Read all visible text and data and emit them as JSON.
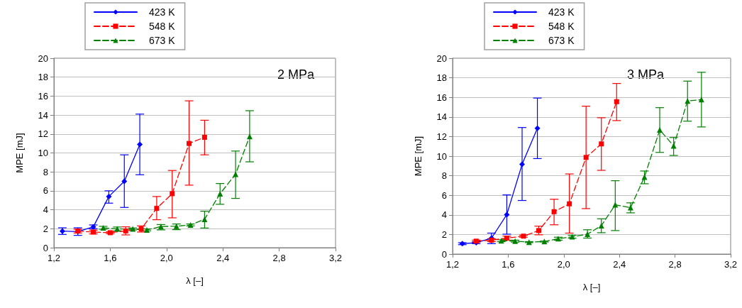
{
  "chart_data": [
    {
      "type": "line",
      "xlabel": "λ [–]",
      "ylabel": "MPE [mJ]",
      "annotations": [
        "2 MPa"
      ],
      "xlim": [
        1.2,
        3.2
      ],
      "xticks": [
        {
          "value": 1.2,
          "label": "1,2"
        },
        {
          "value": 1.6,
          "label": "1,6"
        },
        {
          "value": 2.0,
          "label": "2,0"
        },
        {
          "value": 2.4,
          "label": "2,4"
        },
        {
          "value": 2.8,
          "label": "2,8"
        },
        {
          "value": 3.2,
          "label": "3,2"
        }
      ],
      "ylim": [
        0,
        20
      ],
      "yticks": [
        0,
        2,
        4,
        6,
        8,
        10,
        12,
        14,
        16,
        18,
        20
      ],
      "grid": "y",
      "legend": "top left",
      "series": [
        {
          "name": "423 K",
          "color": "#0000ff",
          "marker": "diamond",
          "line_style": "solid",
          "x": [
            1.26,
            1.37,
            1.48,
            1.59,
            1.7,
            1.81
          ],
          "values": [
            1.75,
            1.7,
            2.2,
            5.4,
            7.0,
            10.9
          ],
          "errors": [
            0.35,
            0.4,
            0.2,
            [
              4.7,
              6.0
            ],
            [
              4.25,
              9.8
            ],
            [
              7.7,
              14.1
            ]
          ]
        },
        {
          "name": "548 K",
          "color": "#ff0000",
          "marker": "square",
          "line_style": "dashed",
          "x": [
            1.37,
            1.48,
            1.6,
            1.71,
            1.82,
            1.93,
            2.04,
            2.16,
            2.27
          ],
          "values": [
            1.75,
            1.65,
            1.58,
            1.77,
            1.98,
            4.15,
            5.7,
            11.0,
            11.65
          ],
          "errors": [
            0.2,
            [
              1.45,
              1.85
            ],
            0.1,
            [
              1.35,
              2.2
            ],
            [
              1.65,
              2.3
            ],
            [
              2.95,
              5.4
            ],
            [
              3.15,
              8.15
            ],
            [
              6.6,
              15.5
            ],
            [
              9.8,
              13.45
            ]
          ]
        },
        {
          "name": "673 K",
          "color": "#008000",
          "marker": "triangle",
          "line_style": "dashed",
          "x": [
            1.55,
            1.65,
            1.76,
            1.86,
            1.96,
            2.07,
            2.17,
            2.27,
            2.38,
            2.49,
            2.59
          ],
          "values": [
            2.1,
            1.98,
            1.98,
            1.88,
            2.23,
            2.27,
            2.4,
            3.0,
            5.7,
            7.75,
            11.75
          ],
          "errors": [
            0.15,
            0.2,
            0.1,
            0.1,
            [
              1.88,
              2.44
            ],
            [
              1.9,
              2.5
            ],
            0.1,
            [
              2.08,
              3.85
            ],
            [
              4.58,
              6.77
            ],
            [
              5.2,
              10.2
            ],
            [
              9.06,
              14.46
            ]
          ]
        }
      ]
    },
    {
      "type": "line",
      "xlabel": "λ [–]",
      "ylabel": "MPE [mJ]",
      "annotations": [
        "3 MPa"
      ],
      "xlim": [
        1.2,
        3.2
      ],
      "xticks": [
        {
          "value": 1.2,
          "label": "1,2"
        },
        {
          "value": 1.6,
          "label": "1,6"
        },
        {
          "value": 2.0,
          "label": "2,0"
        },
        {
          "value": 2.4,
          "label": "2,4"
        },
        {
          "value": 2.8,
          "label": "2,8"
        },
        {
          "value": 3.2,
          "label": "3,2"
        }
      ],
      "ylim": [
        0,
        20
      ],
      "yticks": [
        0,
        2,
        4,
        6,
        8,
        10,
        12,
        14,
        16,
        18,
        20
      ],
      "grid": "y",
      "legend": "top left",
      "series": [
        {
          "name": "423 K",
          "color": "#0000ff",
          "marker": "diamond",
          "line_style": "solid",
          "x": [
            1.27,
            1.37,
            1.48,
            1.59,
            1.7,
            1.81
          ],
          "values": [
            1.06,
            1.16,
            1.63,
            4.03,
            9.16,
            12.84
          ],
          "errors": [
            0.1,
            0.1,
            [
              1.06,
              2.14
            ],
            [
              2.03,
              6.04
            ],
            [
              5.47,
              12.92
            ],
            [
              9.75,
              15.93
            ]
          ]
        },
        {
          "name": "548 K",
          "color": "#ff0000",
          "marker": "square",
          "line_style": "dashed",
          "x": [
            1.37,
            1.48,
            1.59,
            1.71,
            1.82,
            1.93,
            2.04,
            2.16,
            2.27,
            2.38
          ],
          "values": [
            1.32,
            1.42,
            1.63,
            1.83,
            2.4,
            4.33,
            5.13,
            9.87,
            11.25,
            15.56
          ],
          "errors": [
            0.1,
            0.15,
            0.2,
            0.1,
            [
              1.97,
              2.85
            ],
            [
              2.99,
              5.6
            ],
            [
              2.14,
              8.18
            ],
            [
              4.64,
              15.1
            ],
            [
              8.55,
              13.92
            ],
            [
              13.63,
              17.42
            ]
          ]
        },
        {
          "name": "673 K",
          "color": "#008000",
          "marker": "triangle",
          "line_style": "dashed",
          "x": [
            1.55,
            1.65,
            1.75,
            1.86,
            1.96,
            2.06,
            2.17,
            2.27,
            2.37,
            2.48,
            2.58,
            2.69,
            2.79,
            2.89,
            2.99
          ],
          "values": [
            1.36,
            1.32,
            1.22,
            1.28,
            1.57,
            1.77,
            2.03,
            2.9,
            5.03,
            4.74,
            7.87,
            12.68,
            11.05,
            15.63,
            15.77
          ],
          "errors": [
            0.1,
            0.1,
            0.05,
            0.05,
            0.15,
            0.15,
            [
              1.63,
              2.48
            ],
            [
              2.18,
              3.6
            ],
            [
              2.4,
              7.49
            ],
            [
              4.21,
              5.23
            ],
            [
              7.18,
              8.48
            ],
            [
              10.38,
              14.95
            ],
            [
              10.07,
              11.9
            ],
            [
              13.57,
              17.66
            ],
            [
              12.98,
              18.56
            ]
          ]
        }
      ]
    }
  ]
}
